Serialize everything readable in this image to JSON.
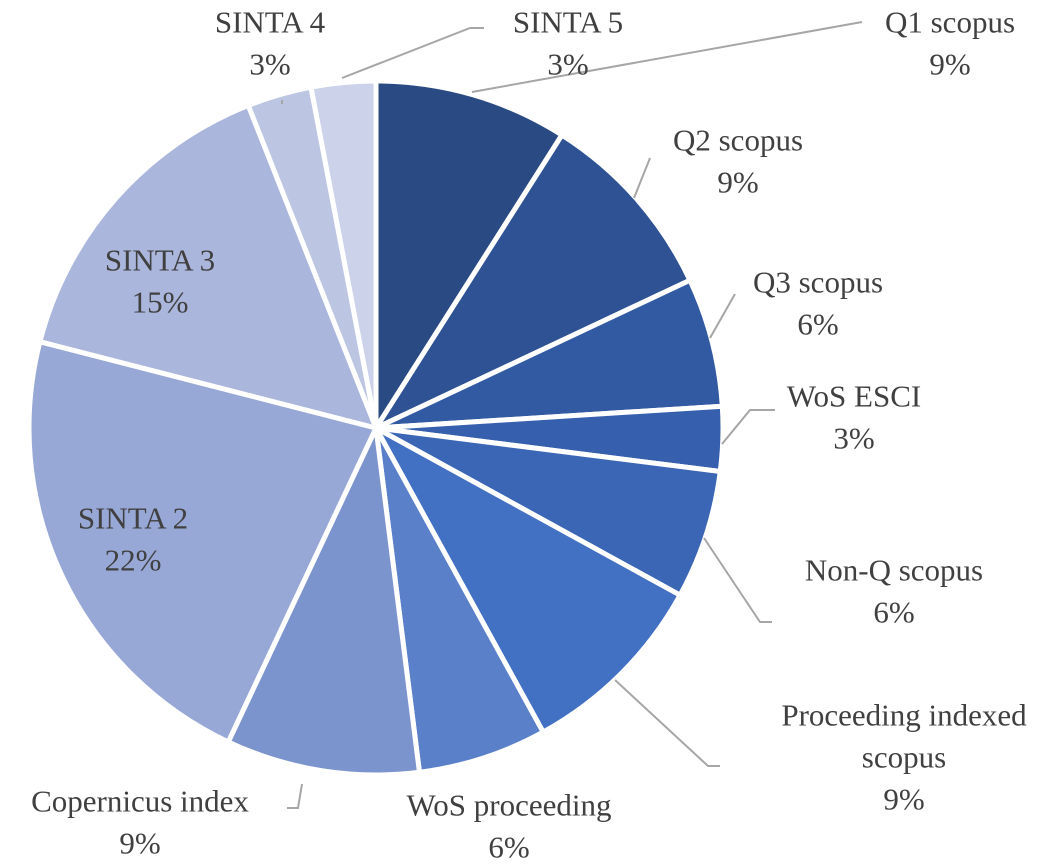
{
  "chart_data": {
    "type": "pie",
    "title": "",
    "slices": [
      {
        "label_lines": [
          "Q1 scopus"
        ],
        "percent_label": "9%",
        "value": 9,
        "color": "#2a4a83"
      },
      {
        "label_lines": [
          "Q2 scopus"
        ],
        "percent_label": "9%",
        "value": 9,
        "color": "#2e5293"
      },
      {
        "label_lines": [
          "Q3 scopus"
        ],
        "percent_label": "6%",
        "value": 6,
        "color": "#325aa3"
      },
      {
        "label_lines": [
          "WoS ESCI"
        ],
        "percent_label": "3%",
        "value": 3,
        "color": "#3660ad"
      },
      {
        "label_lines": [
          "Non-Q scopus"
        ],
        "percent_label": "6%",
        "value": 6,
        "color": "#3a66b5"
      },
      {
        "label_lines": [
          "Proceeding indexed",
          "scopus"
        ],
        "percent_label": "9%",
        "value": 9,
        "color": "#4270c3"
      },
      {
        "label_lines": [
          "WoS proceeding"
        ],
        "percent_label": "6%",
        "value": 6,
        "color": "#5a80c9"
      },
      {
        "label_lines": [
          "Copernicus index"
        ],
        "percent_label": "9%",
        "value": 9,
        "color": "#7c94cd"
      },
      {
        "label_lines": [
          "SINTA 2"
        ],
        "percent_label": "22%",
        "value": 22,
        "color": "#98a8d6"
      },
      {
        "label_lines": [
          "SINTA 3"
        ],
        "percent_label": "15%",
        "value": 15,
        "color": "#aab6dc"
      },
      {
        "label_lines": [
          "SINTA 4"
        ],
        "percent_label": "3%",
        "value": 3,
        "color": "#bcc6e3"
      },
      {
        "label_lines": [
          "SINTA 5"
        ],
        "percent_label": "3%",
        "value": 3,
        "color": "#cbd2ea"
      }
    ]
  }
}
